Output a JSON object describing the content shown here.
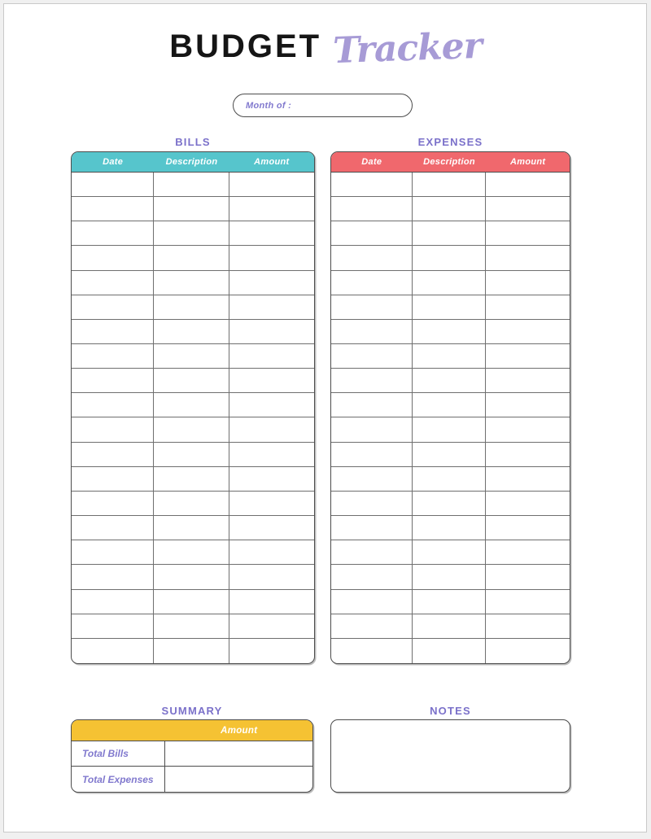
{
  "header": {
    "title_primary": "BUDGET",
    "title_script": "Tracker"
  },
  "month_field": {
    "label": "Month of :"
  },
  "bills": {
    "title": "BILLS",
    "columns": [
      "Date",
      "Description",
      "Amount"
    ],
    "row_count": 20,
    "header_color": "#56c5cc",
    "rows_empty": true
  },
  "expenses": {
    "title": "EXPENSES",
    "columns": [
      "Date",
      "Description",
      "Amount"
    ],
    "row_count": 20,
    "header_color": "#f0686d",
    "rows_empty": true
  },
  "summary": {
    "title": "SUMMARY",
    "amount_header": "Amount",
    "header_color": "#f5c233",
    "rows": [
      {
        "label": "Total Bills",
        "value": ""
      },
      {
        "label": "Total Expenses",
        "value": ""
      }
    ]
  },
  "notes": {
    "title": "NOTES",
    "content": ""
  },
  "colors": {
    "bills_header": "#56c5cc",
    "expenses_header": "#f0686d",
    "summary_header": "#f5c233",
    "heading_purple": "#7b71ca",
    "script_purple": "#a79bd6",
    "label_purple": "#8179ce"
  }
}
